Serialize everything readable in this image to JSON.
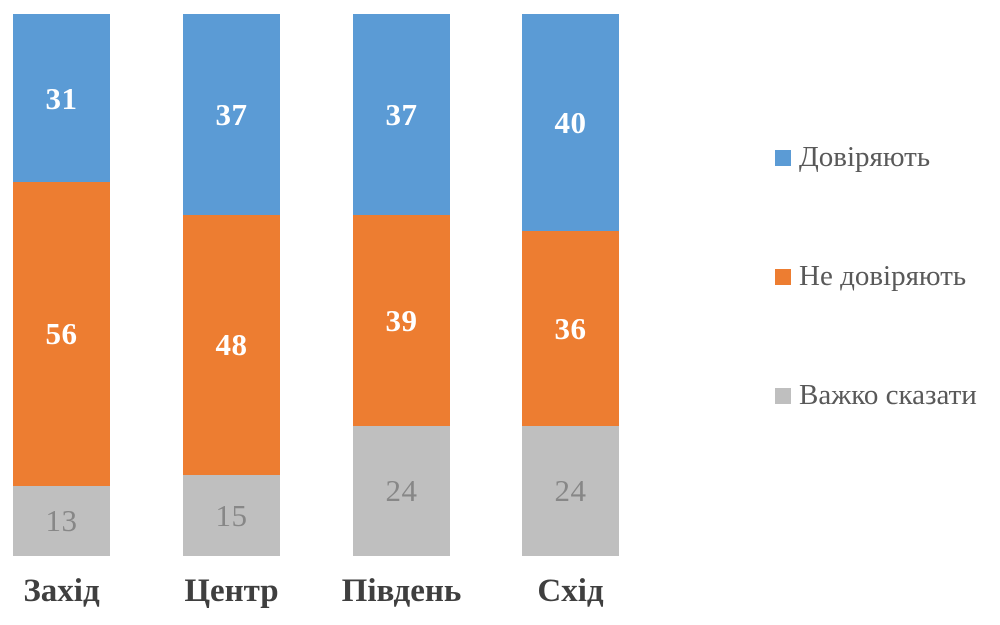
{
  "chart_data": {
    "type": "bar",
    "subtype": "stacked-100-percent",
    "title": "",
    "xlabel": "",
    "ylabel": "",
    "grid": false,
    "legend_position": "right",
    "background_color": "#FFFFFF",
    "categories": [
      "Захід",
      "Центр",
      "Південь",
      "Схід"
    ],
    "series": [
      {
        "name": "Довіряють",
        "values": [
          31,
          37,
          37,
          40
        ],
        "color": "#5B9BD5",
        "label_color": "#FFFFFF",
        "label_bold": true
      },
      {
        "name": "Не довіряють",
        "values": [
          56,
          48,
          39,
          36
        ],
        "color": "#ED7D31",
        "label_color": "#FFFFFF",
        "label_bold": true
      },
      {
        "name": "Важко сказати",
        "values": [
          13,
          15,
          24,
          24
        ],
        "color": "#BFBFBF",
        "label_color": "#878787",
        "label_bold": false
      }
    ],
    "category_label_color": "#3F3F3F",
    "legend_text_color": "#595959",
    "value_axis_range": [
      0,
      100
    ]
  }
}
